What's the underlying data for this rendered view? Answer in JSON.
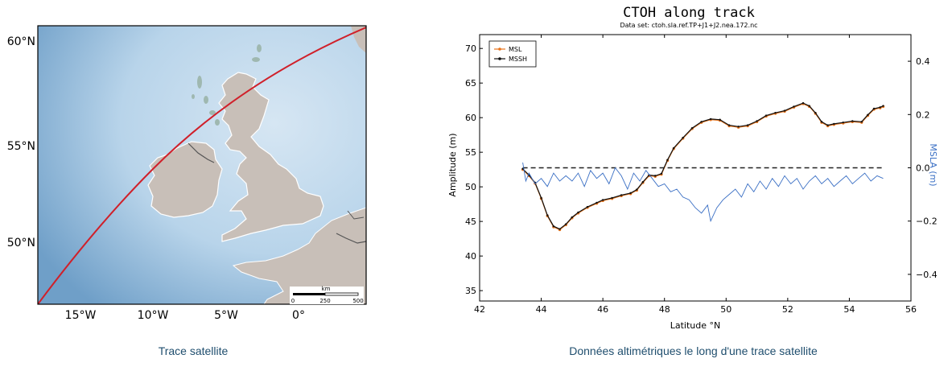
{
  "map": {
    "lon_labels": [
      "15°W",
      "10°W",
      "5°W",
      "0°"
    ],
    "lat_labels": [
      "60°N",
      "55°N",
      "50°N"
    ],
    "scalebar": {
      "unit": "km",
      "ticks": [
        "0",
        "250",
        "500"
      ]
    },
    "track_color": "#d0202a",
    "land_color": "#c8bfb8",
    "sea_color": "#b8d4ea"
  },
  "captions": {
    "left": "Trace satellite",
    "right": "Données altimétriques le long d'une trace satellite"
  },
  "chart_data": {
    "type": "line",
    "title": "CTOH along track",
    "subtitle": "Data set: ctoh.sla.ref.TP+J1+J2.nea.172.nc",
    "xlabel": "Latitude °N",
    "ylabel": "Amplitude (m)",
    "y2label": "MSLA (m)",
    "xlim": [
      42,
      56
    ],
    "ylim": [
      33.5,
      72
    ],
    "y2lim": [
      -0.5,
      0.5
    ],
    "x_ticks": [
      42,
      44,
      46,
      48,
      50,
      52,
      54,
      56
    ],
    "y_ticks": [
      35,
      40,
      45,
      50,
      55,
      60,
      65,
      70
    ],
    "y2_ticks": [
      -0.4,
      -0.2,
      0.0,
      0.2,
      0.4
    ],
    "y2_tick_labels": [
      "−0.4",
      "−0.2",
      "0.0",
      "0.2",
      "0.4"
    ],
    "legend": "top-left",
    "series": [
      {
        "name": "MSL",
        "color": "#e8731a",
        "axis": "left",
        "x": [
          43.4,
          43.6,
          43.8,
          44.0,
          44.2,
          44.4,
          44.6,
          44.8,
          45.0,
          45.2,
          45.5,
          45.8,
          46.0,
          46.3,
          46.6,
          46.9,
          47.1,
          47.3,
          47.5,
          47.7,
          47.9,
          48.1,
          48.3,
          48.6,
          48.9,
          49.2,
          49.5,
          49.8,
          50.1,
          50.4,
          50.7,
          51.0,
          51.3,
          51.6,
          51.9,
          52.2,
          52.5,
          52.7,
          52.9,
          53.1,
          53.3,
          53.5,
          53.8,
          54.1,
          54.4,
          54.6,
          54.8,
          55.0,
          55.1
        ],
        "values": [
          52.5,
          51.6,
          50.5,
          48.3,
          45.8,
          44.2,
          43.8,
          44.5,
          45.5,
          46.2,
          47.0,
          47.6,
          48.0,
          48.3,
          48.7,
          49.0,
          49.5,
          50.6,
          51.6,
          51.5,
          51.8,
          53.8,
          55.5,
          57.0,
          58.4,
          59.3,
          59.7,
          59.6,
          58.8,
          58.6,
          58.8,
          59.4,
          60.2,
          60.6,
          60.9,
          61.5,
          62.0,
          61.6,
          60.6,
          59.3,
          58.8,
          59.0,
          59.2,
          59.4,
          59.3,
          60.3,
          61.2,
          61.4,
          61.6
        ]
      },
      {
        "name": "MSSH",
        "color": "#111111",
        "axis": "left",
        "x": [
          43.4,
          43.6,
          43.8,
          44.0,
          44.2,
          44.4,
          44.6,
          44.8,
          45.0,
          45.2,
          45.5,
          45.8,
          46.0,
          46.3,
          46.6,
          46.9,
          47.1,
          47.3,
          47.5,
          47.7,
          47.9,
          48.1,
          48.3,
          48.6,
          48.9,
          49.2,
          49.5,
          49.8,
          50.1,
          50.4,
          50.7,
          51.0,
          51.3,
          51.6,
          51.9,
          52.2,
          52.5,
          52.7,
          52.9,
          53.1,
          53.3,
          53.5,
          53.8,
          54.1,
          54.4,
          54.6,
          54.8,
          55.0,
          55.1
        ],
        "values": [
          52.6,
          51.7,
          50.6,
          48.4,
          45.9,
          44.3,
          43.9,
          44.6,
          45.6,
          46.3,
          47.1,
          47.7,
          48.1,
          48.4,
          48.8,
          49.1,
          49.6,
          50.7,
          51.7,
          51.6,
          51.9,
          53.9,
          55.6,
          57.1,
          58.5,
          59.4,
          59.8,
          59.7,
          58.9,
          58.7,
          58.9,
          59.5,
          60.3,
          60.7,
          61.0,
          61.6,
          62.1,
          61.7,
          60.7,
          59.4,
          58.9,
          59.1,
          59.3,
          59.5,
          59.4,
          60.4,
          61.3,
          61.5,
          61.7
        ]
      },
      {
        "name": "MSLA",
        "color": "#3a6fc4",
        "axis": "right",
        "x": [
          43.4,
          43.5,
          43.6,
          43.8,
          44.0,
          44.2,
          44.4,
          44.6,
          44.8,
          45.0,
          45.2,
          45.4,
          45.6,
          45.8,
          46.0,
          46.2,
          46.4,
          46.6,
          46.8,
          47.0,
          47.2,
          47.4,
          47.6,
          47.8,
          48.0,
          48.2,
          48.4,
          48.6,
          48.8,
          49.0,
          49.2,
          49.4,
          49.5,
          49.7,
          49.9,
          50.1,
          50.3,
          50.5,
          50.7,
          50.9,
          51.1,
          51.3,
          51.5,
          51.7,
          51.9,
          52.1,
          52.3,
          52.5,
          52.7,
          52.9,
          53.1,
          53.3,
          53.5,
          53.7,
          53.9,
          54.1,
          54.3,
          54.5,
          54.7,
          54.9,
          55.1
        ],
        "values": [
          0.02,
          -0.05,
          -0.02,
          -0.06,
          -0.04,
          -0.07,
          -0.02,
          -0.05,
          -0.03,
          -0.05,
          -0.02,
          -0.07,
          -0.01,
          -0.04,
          -0.02,
          -0.06,
          0.0,
          -0.03,
          -0.08,
          -0.02,
          -0.05,
          -0.01,
          -0.04,
          -0.07,
          -0.06,
          -0.09,
          -0.08,
          -0.11,
          -0.12,
          -0.15,
          -0.17,
          -0.14,
          -0.2,
          -0.15,
          -0.12,
          -0.1,
          -0.08,
          -0.11,
          -0.06,
          -0.09,
          -0.05,
          -0.08,
          -0.04,
          -0.07,
          -0.03,
          -0.06,
          -0.04,
          -0.08,
          -0.05,
          -0.03,
          -0.06,
          -0.04,
          -0.07,
          -0.05,
          -0.03,
          -0.06,
          -0.04,
          -0.02,
          -0.05,
          -0.03,
          -0.04
        ]
      }
    ],
    "reference_line": {
      "value": 0.0,
      "axis": "right",
      "style": "dashed"
    }
  }
}
